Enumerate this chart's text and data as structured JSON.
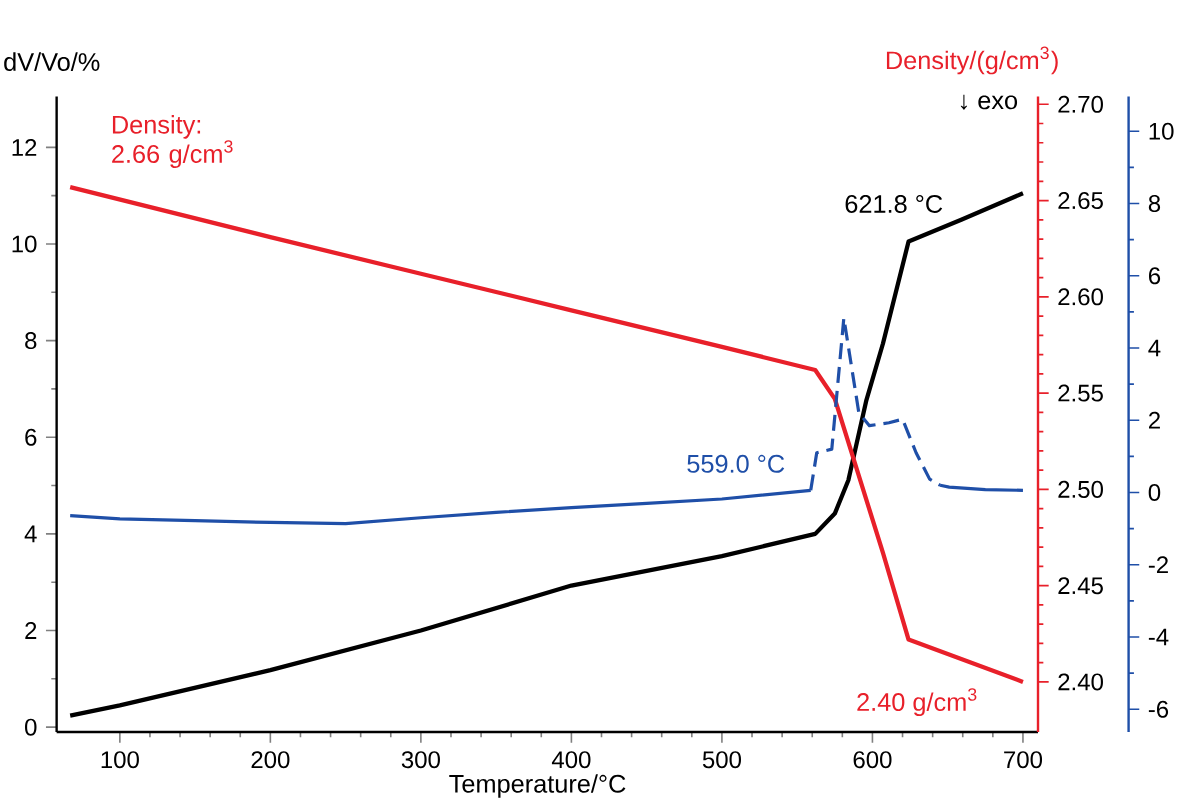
{
  "chart_data": {
    "type": "line",
    "xlabel": "Temperature/°C",
    "ylabel": "dV/Vo/%",
    "y2label": "Density/(g/cm$^{3}$)",
    "annotations": [
      "↓ exo",
      "Density: 2.66 g/cm$^{3}$",
      "621.8 °C",
      "559.0 °C",
      "2.40 g/cm$^{3}$"
    ],
    "xlim": [
      58,
      710
    ],
    "xticks": [
      100,
      200,
      300,
      400,
      500,
      600,
      700
    ],
    "ylim": [
      -0.1,
      13.05
    ],
    "yticks": [
      0,
      2,
      4,
      6,
      8,
      10,
      12
    ],
    "y2lim": [
      2.374,
      2.704
    ],
    "y2ticks": [
      {
        "value": 2.4,
        "label": "2.40"
      },
      2.45,
      {
        "value": 2.5,
        "label": "2.50"
      },
      2.55,
      {
        "value": 2.6,
        "label": "2.60"
      },
      2.65,
      {
        "value": 2.7,
        "label": "2.70"
      }
    ],
    "y3lim": [
      -6.63,
      10.96
    ],
    "y3ticks": [
      -6,
      -4,
      -2,
      0,
      2,
      4,
      6,
      8,
      10
    ],
    "series": [
      {
        "color": "#000000",
        "line_style": "solid",
        "x": [
          67,
          100,
          200,
          300,
          400,
          500,
          562,
          575,
          584,
          596,
          607,
          624,
          659,
          700
        ],
        "values": [
          0.24,
          0.45,
          1.18,
          2.0,
          2.93,
          3.54,
          4.0,
          4.42,
          5.11,
          6.77,
          7.94,
          10.05,
          10.5,
          11.05
        ]
      },
      {
        "color": "#e8202a",
        "axis": "y2",
        "line_style": "solid",
        "x": [
          67,
          200,
          300,
          400,
          500,
          562,
          575,
          607,
          624,
          700
        ],
        "values": [
          2.657,
          2.631,
          2.612,
          2.593,
          2.574,
          2.562,
          2.547,
          2.467,
          2.422,
          2.4
        ]
      },
      {
        "color": "#1f4fa8",
        "axis": "y3",
        "line_style": "solid",
        "x": [
          67,
          100,
          150,
          200,
          250,
          300,
          350,
          400,
          450,
          500,
          559
        ],
        "values": [
          -0.64,
          -0.73,
          -0.78,
          -0.83,
          -0.86,
          -0.7,
          -0.55,
          -0.42,
          -0.3,
          -0.18,
          0.06
        ]
      },
      {
        "color": "#1f4fa8",
        "axis": "y3",
        "line_style": "dashed",
        "x": [
          559,
          563,
          573,
          581,
          591,
          598,
          611,
          620,
          629,
          638,
          645
        ],
        "values": [
          0.06,
          1.1,
          1.2,
          4.83,
          2.2,
          1.85,
          1.93,
          2.03,
          1.1,
          0.37,
          0.2
        ]
      },
      {
        "color": "#1f4fa8",
        "axis": "y3",
        "line_style": "solid",
        "x": [
          645,
          651,
          675,
          700
        ],
        "values": [
          0.2,
          0.15,
          0.08,
          0.06
        ]
      }
    ]
  }
}
